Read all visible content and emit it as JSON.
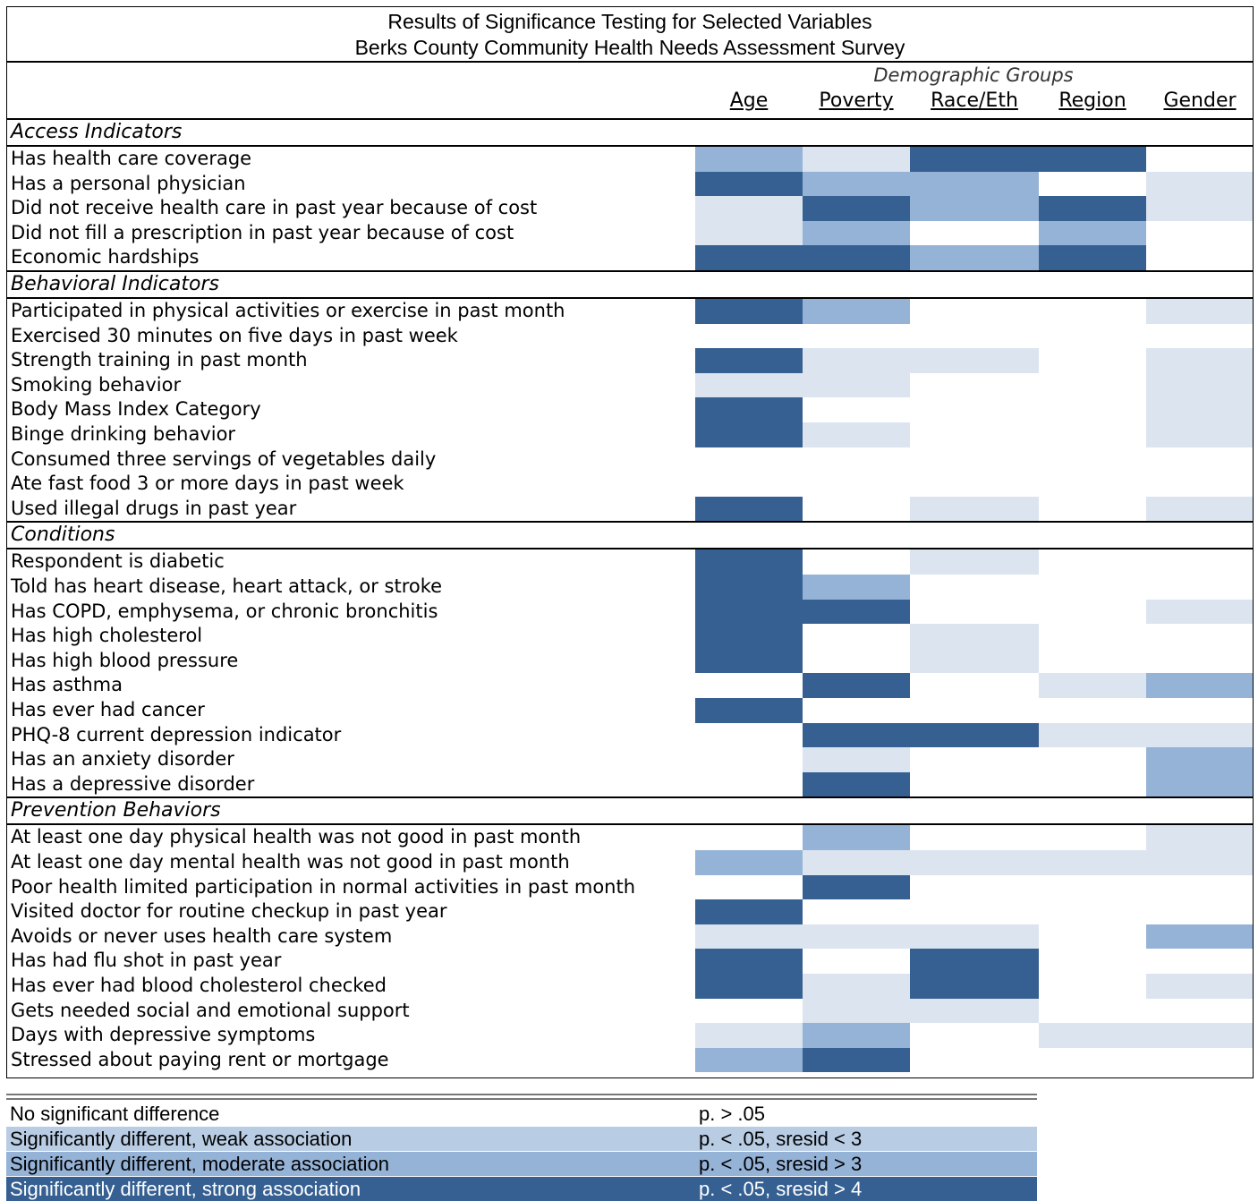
{
  "title": {
    "line1": "Results of Significance Testing for Selected Variables",
    "line2": "Berks County Community Health Needs Assessment Survey"
  },
  "header": {
    "group_label": "Demographic Groups",
    "columns": [
      "Age",
      "Poverty",
      "Race/Eth",
      "Region",
      "Gender"
    ]
  },
  "colors": {
    "none": "#ffffff",
    "weak": "#dbe4ef",
    "moderate": "#95b3d7",
    "strong": "#366092"
  },
  "sections": [
    {
      "name": "Access Indicators",
      "rows": [
        {
          "label": "Has health care coverage",
          "levels": [
            "moderate",
            "weak",
            "strong",
            "strong",
            "none"
          ]
        },
        {
          "label": "Has a personal physician",
          "levels": [
            "strong",
            "moderate",
            "moderate",
            "none",
            "weak"
          ]
        },
        {
          "label": "Did not receive health care in past year because of cost",
          "levels": [
            "weak",
            "strong",
            "moderate",
            "strong",
            "weak"
          ]
        },
        {
          "label": "Did not fill a prescription in past year because of cost",
          "levels": [
            "weak",
            "moderate",
            "none",
            "moderate",
            "none"
          ]
        },
        {
          "label": "Economic hardships",
          "levels": [
            "strong",
            "strong",
            "moderate",
            "strong",
            "none"
          ]
        }
      ]
    },
    {
      "name": "Behavioral Indicators",
      "rows": [
        {
          "label": "Participated in physical activities or exercise in past month",
          "levels": [
            "strong",
            "moderate",
            "none",
            "none",
            "weak"
          ]
        },
        {
          "label": "Exercised 30 minutes on five days in past week",
          "levels": [
            "none",
            "none",
            "none",
            "none",
            "none"
          ]
        },
        {
          "label": "Strength training in past month",
          "levels": [
            "strong",
            "weak",
            "weak",
            "none",
            "weak"
          ]
        },
        {
          "label": "Smoking behavior",
          "levels": [
            "weak",
            "weak",
            "none",
            "none",
            "weak"
          ]
        },
        {
          "label": "Body Mass Index Category",
          "levels": [
            "strong",
            "none",
            "none",
            "none",
            "weak"
          ]
        },
        {
          "label": "Binge drinking behavior",
          "levels": [
            "strong",
            "weak",
            "none",
            "none",
            "weak"
          ]
        },
        {
          "label": "Consumed three servings of vegetables daily",
          "levels": [
            "none",
            "none",
            "none",
            "none",
            "none"
          ]
        },
        {
          "label": "Ate fast food 3 or more days in past week",
          "levels": [
            "none",
            "none",
            "none",
            "none",
            "none"
          ]
        },
        {
          "label": "Used illegal drugs in past year",
          "levels": [
            "strong",
            "none",
            "weak",
            "none",
            "weak"
          ]
        }
      ]
    },
    {
      "name": "Conditions",
      "rows": [
        {
          "label": "Respondent is diabetic",
          "levels": [
            "strong",
            "none",
            "weak",
            "none",
            "none"
          ]
        },
        {
          "label": "Told has heart disease, heart attack, or stroke",
          "levels": [
            "strong",
            "moderate",
            "none",
            "none",
            "none"
          ]
        },
        {
          "label": "Has COPD, emphysema, or chronic bronchitis",
          "levels": [
            "strong",
            "strong",
            "none",
            "none",
            "weak"
          ]
        },
        {
          "label": "Has high cholesterol",
          "levels": [
            "strong",
            "none",
            "weak",
            "none",
            "none"
          ]
        },
        {
          "label": "Has high blood pressure",
          "levels": [
            "strong",
            "none",
            "weak",
            "none",
            "none"
          ]
        },
        {
          "label": "Has asthma",
          "levels": [
            "none",
            "strong",
            "none",
            "weak",
            "moderate"
          ]
        },
        {
          "label": "Has ever had cancer",
          "levels": [
            "strong",
            "none",
            "none",
            "none",
            "none"
          ]
        },
        {
          "label": "PHQ-8 current  depression indicator",
          "levels": [
            "none",
            "strong",
            "strong",
            "weak",
            "weak"
          ]
        },
        {
          "label": "Has an anxiety disorder",
          "levels": [
            "none",
            "weak",
            "none",
            "none",
            "moderate"
          ]
        },
        {
          "label": "Has a depressive disorder",
          "levels": [
            "none",
            "strong",
            "none",
            "none",
            "moderate"
          ]
        }
      ]
    },
    {
      "name": "Prevention Behaviors",
      "rows": [
        {
          "label": "At least one day physical health was not good in past month",
          "levels": [
            "none",
            "moderate",
            "none",
            "none",
            "weak"
          ]
        },
        {
          "label": "At least one day mental health was not good in past month",
          "levels": [
            "moderate",
            "weak",
            "weak",
            "weak",
            "weak"
          ]
        },
        {
          "label": "Poor health limited participation in normal activities in past month",
          "levels": [
            "none",
            "strong",
            "none",
            "none",
            "none"
          ]
        },
        {
          "label": "Visited doctor for routine checkup in past year",
          "levels": [
            "strong",
            "none",
            "none",
            "none",
            "none"
          ]
        },
        {
          "label": "Avoids or never uses health care system",
          "levels": [
            "weak",
            "weak",
            "weak",
            "none",
            "moderate"
          ]
        },
        {
          "label": "Has had flu shot in past year",
          "levels": [
            "strong",
            "none",
            "strong",
            "none",
            "none"
          ]
        },
        {
          "label": "Has ever had blood cholesterol checked",
          "levels": [
            "strong",
            "weak",
            "strong",
            "none",
            "weak"
          ]
        },
        {
          "label": "Gets needed social and emotional support",
          "levels": [
            "none",
            "weak",
            "weak",
            "none",
            "none"
          ]
        },
        {
          "label": "Days with depressive symptoms",
          "levels": [
            "weak",
            "moderate",
            "none",
            "weak",
            "weak"
          ]
        },
        {
          "label": "Stressed about paying rent or mortgage",
          "levels": [
            "moderate",
            "strong",
            "none",
            "none",
            "none"
          ]
        }
      ]
    }
  ],
  "legend": [
    {
      "label": "No significant difference",
      "p": "p. > .05",
      "level": "none"
    },
    {
      "label": "Significantly different, weak association",
      "p": "p. < .05, sresid < 3",
      "level": "weak"
    },
    {
      "label": "Significantly different, moderate association",
      "p": "p. < .05, sresid > 3",
      "level": "moderate"
    },
    {
      "label": "Significantly different, strong association",
      "p": "p. < .05, sresid > 4",
      "level": "strong"
    }
  ]
}
